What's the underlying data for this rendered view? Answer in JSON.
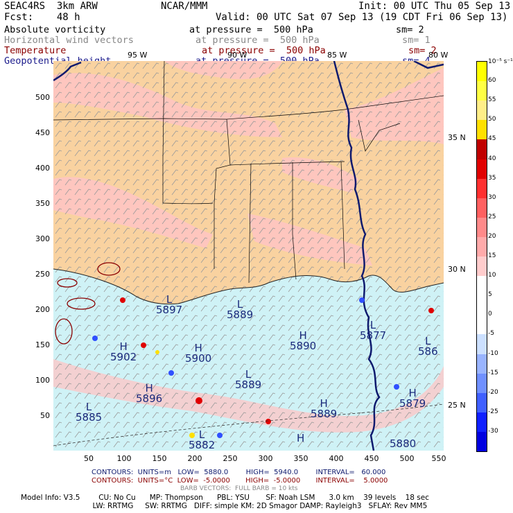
{
  "header": {
    "model": "SEAC4RS  3km ARW",
    "org": "NCAR/MMM",
    "init": "Init: 00 UTC Thu 05 Sep 13",
    "fcst_label": "Fcst:    48 h",
    "valid": "Valid: 00 UTC Sat 07 Sep 13 (19 CDT Fri 06 Sep 13)"
  },
  "fields": [
    {
      "name": "Absolute vorticity",
      "level": "at pressure =  500 hPa",
      "sm": "sm= 2",
      "color": "#000000"
    },
    {
      "name": "Horizontal wind vectors",
      "level": "at pressure =  500 hPa",
      "sm": "sm= 1",
      "color": "#888888"
    },
    {
      "name": "Temperature",
      "level": "at pressure =  500 hPa",
      "sm": "sm= 2",
      "color": "#8b0000"
    },
    {
      "name": "Geopotential height",
      "level": "at pressure =  500 hPa",
      "sm": "sm= 4",
      "color": "#1a1a8c"
    }
  ],
  "axes": {
    "y_ticks": [
      "50",
      "100",
      "150",
      "200",
      "250",
      "300",
      "350",
      "400",
      "450",
      "500"
    ],
    "x_ticks": [
      "50",
      "100",
      "150",
      "200",
      "250",
      "300",
      "350",
      "400",
      "450",
      "500",
      "550"
    ],
    "lon_labels": [
      "95 W",
      "90 W",
      "85 W",
      "80 W"
    ],
    "lat_labels": [
      "35 N",
      "30 N",
      "25 N"
    ]
  },
  "colorbar": {
    "unit": "10⁻⁵ s⁻¹",
    "labels": [
      "60",
      "55",
      "50",
      "45",
      "40",
      "35",
      "30",
      "25",
      "20",
      "15",
      "10",
      "5",
      "0",
      "-5",
      "-10",
      "-15",
      "-20",
      "-25",
      "-30"
    ],
    "colors": [
      "#ffff00",
      "#ffff44",
      "#ffee88",
      "#ffe000",
      "#c00000",
      "#e00000",
      "#ff3030",
      "#ff6060",
      "#ff8a8a",
      "#ffaaaa",
      "#ffcccc",
      "#ffffff",
      "#ffffff",
      "#ffffff",
      "#cce0ff",
      "#99b4ff",
      "#7090ff",
      "#4060ff",
      "#1020ff",
      "#0000e0"
    ]
  },
  "map_labels": [
    {
      "type": "L",
      "value": "5897"
    },
    {
      "type": "L",
      "value": "5889"
    },
    {
      "type": "H",
      "value": "5890"
    },
    {
      "type": "L",
      "value": "5877"
    },
    {
      "type": "L",
      "value": "586"
    },
    {
      "type": "H",
      "value": "5902"
    },
    {
      "type": "H",
      "value": "5900"
    },
    {
      "type": "L",
      "value": "5889"
    },
    {
      "type": "H",
      "value": "5896"
    },
    {
      "type": "L",
      "value": "5885"
    },
    {
      "type": "H",
      "value": "5889"
    },
    {
      "type": "H",
      "value": "5879"
    },
    {
      "type": "L",
      "value": "5882"
    },
    {
      "type": "H",
      "value": ""
    },
    {
      "type": "",
      "value": "5880"
    }
  ],
  "footer": {
    "contours1": "CONTOURS:  UNITS=m   LOW=  5880.0        HIGH=  5940.0        INTERVAL=   60.000",
    "contours2": "CONTOURS:  UNITS=°C  LOW=  -5.0000       HIGH=  -5.0000       INTERVAL=    5.0000",
    "barbs": "BARB VECTORS:  FULL BARB = 10 kts",
    "model_line1": "Model Info: V3.5        CU: No Cu      MP: Thompson      PBL: YSU       SF: Noah LSM      3.0 km    39 levels    18 sec",
    "model_line2": "                               LW: RRTMG     SW: RRTMG   DIFF: simple KM: 2D Smagor DAMP: Rayleigh3   SFLAY: Rev MM5"
  }
}
